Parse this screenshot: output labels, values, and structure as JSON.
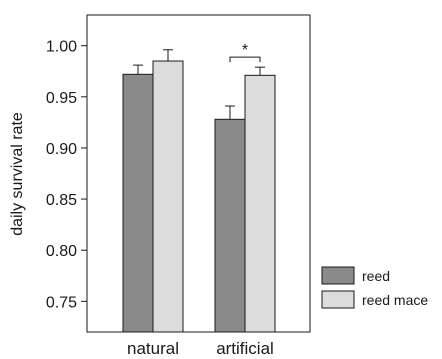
{
  "chart_data": {
    "type": "bar",
    "title": "",
    "xlabel": "",
    "ylabel": "daily survival rate",
    "categories": [
      "natural",
      "artificial"
    ],
    "ylim": [
      0.72,
      1.03
    ],
    "yticks": [
      "0.75",
      "0.80",
      "0.85",
      "0.90",
      "0.95",
      "1.00"
    ],
    "series": [
      {
        "name": "reed",
        "color": "#8a8a8a",
        "values": [
          0.972,
          0.928
        ],
        "errors": [
          0.009,
          0.013
        ]
      },
      {
        "name": "reed mace",
        "color": "#dcdcdc",
        "values": [
          0.985,
          0.971
        ],
        "errors": [
          0.011,
          0.008
        ]
      }
    ],
    "annotations": [
      {
        "text": "*",
        "category": "artificial",
        "type": "significance-bracket"
      }
    ],
    "grid": false,
    "legend": "bottom-right"
  }
}
